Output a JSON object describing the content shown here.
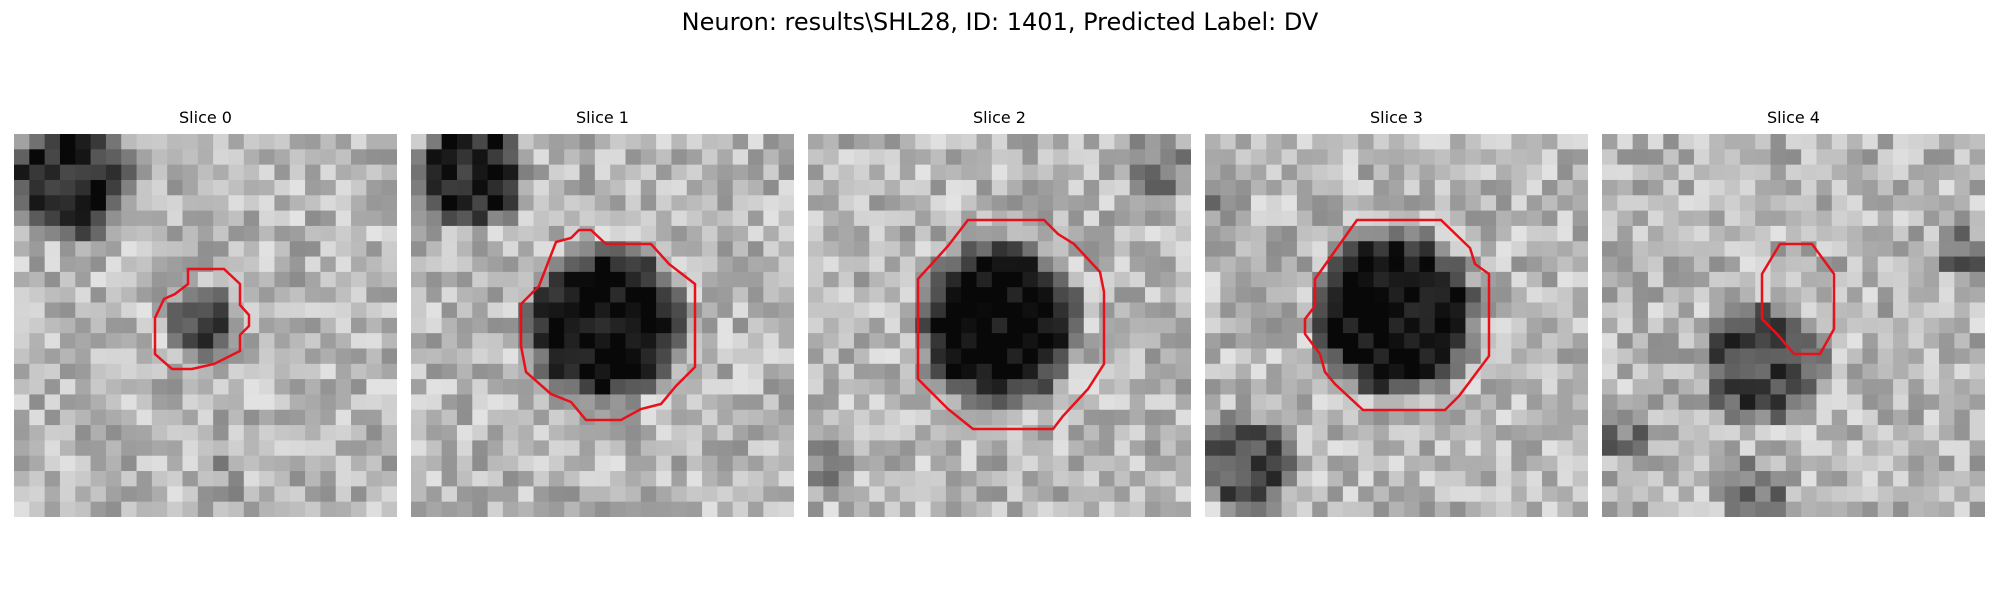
{
  "figure": {
    "title": "Neuron: results\\SHL28, ID: 1401, Predicted Label: DV"
  },
  "panels": [
    {
      "title": "Slice 0",
      "contour_color": "#e8101a"
    },
    {
      "title": "Slice 1",
      "contour_color": "#e8101a"
    },
    {
      "title": "Slice 2",
      "contour_color": "#e8101a"
    },
    {
      "title": "Slice 3",
      "contour_color": "#e8101a"
    },
    {
      "title": "Slice 4",
      "contour_color": "#e8101a"
    }
  ]
}
